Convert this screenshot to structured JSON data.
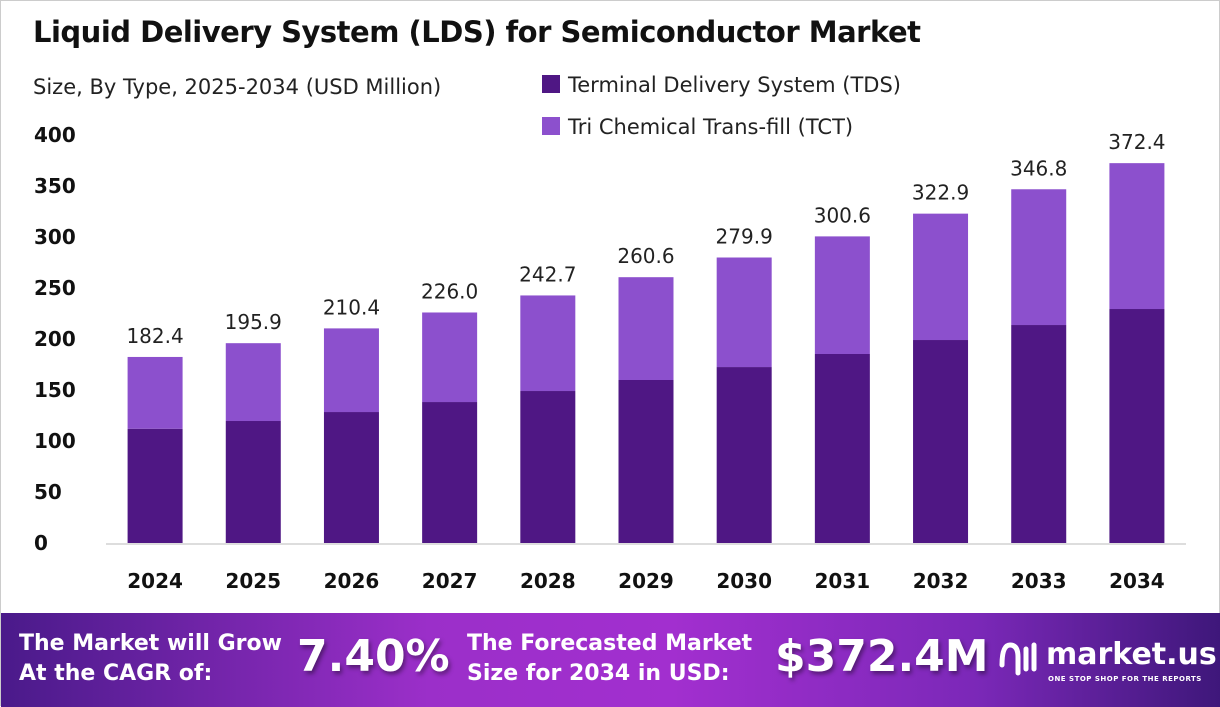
{
  "title": "Liquid Delivery System (LDS) for Semiconductor Market",
  "subtitle": "Size, By Type, 2025-2034 (USD Million)",
  "chart_data": {
    "type": "bar",
    "stacked": true,
    "categories": [
      "2024",
      "2025",
      "2026",
      "2027",
      "2028",
      "2029",
      "2030",
      "2031",
      "2032",
      "2033",
      "2034"
    ],
    "series": [
      {
        "name": "Terminal Delivery System (TDS)",
        "color": "#4f1784",
        "values": [
          112,
          119.6,
          128.4,
          138.2,
          149,
          159.8,
          172.5,
          185.3,
          199,
          213.7,
          229.4
        ]
      },
      {
        "name": "Tri Chemical Trans-fill (TCT)",
        "color": "#8c50cd",
        "values": [
          70.4,
          76.3,
          82,
          87.8,
          93.7,
          100.8,
          107.4,
          115.3,
          123.9,
          133.1,
          143
        ]
      }
    ],
    "totals": [
      "182.4",
      "195.9",
      "210.4",
      "226.0",
      "242.7",
      "260.6",
      "279.9",
      "300.6",
      "322.9",
      "346.8",
      "372.4"
    ],
    "yticks": [
      0,
      50,
      100,
      150,
      200,
      250,
      300,
      350,
      400
    ],
    "ylim": [
      0,
      400
    ],
    "grid": false,
    "legend": "top"
  },
  "footer": {
    "cagr_text_1": "The Market will Grow",
    "cagr_text_2": "At the CAGR of:",
    "cagr_value": "7.40%",
    "forecast_text_1": "The Forecasted Market",
    "forecast_text_2": "Size for 2034 in USD:",
    "forecast_value": "$372.4M",
    "logo_name": "market.us",
    "logo_tagline": "ONE STOP SHOP FOR THE REPORTS"
  }
}
